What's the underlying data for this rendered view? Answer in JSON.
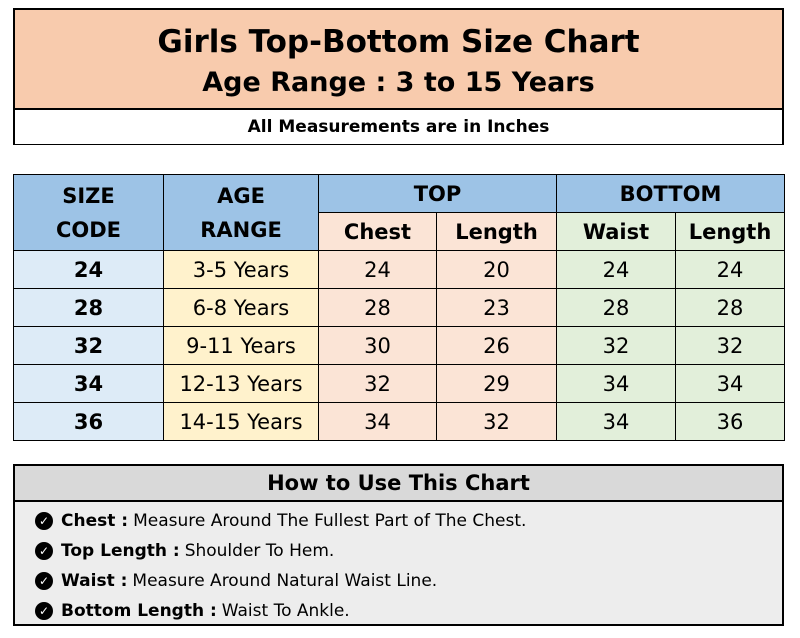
{
  "header": {
    "title": "Girls Top-Bottom Size Chart",
    "subtitle": "Age Range : 3 to 15 Years",
    "note": "All Measurements are in Inches"
  },
  "table": {
    "headers": {
      "size_code_1": "SIZE",
      "size_code_2": "CODE",
      "age_range_1": "AGE",
      "age_range_2": "RANGE",
      "top": "TOP",
      "bottom": "BOTTOM",
      "top_chest": "Chest",
      "top_length": "Length",
      "bottom_waist": "Waist",
      "bottom_length": "Length"
    },
    "rows": [
      {
        "code": "24",
        "age": "3-5 Years",
        "chest": "24",
        "top_length": "20",
        "waist": "24",
        "bottom_length": "24"
      },
      {
        "code": "28",
        "age": "6-8 Years",
        "chest": "28",
        "top_length": "23",
        "waist": "28",
        "bottom_length": "28"
      },
      {
        "code": "32",
        "age": "9-11 Years",
        "chest": "30",
        "top_length": "26",
        "waist": "32",
        "bottom_length": "32"
      },
      {
        "code": "34",
        "age": "12-13 Years",
        "chest": "32",
        "top_length": "29",
        "waist": "34",
        "bottom_length": "34"
      },
      {
        "code": "36",
        "age": "14-15 Years",
        "chest": "34",
        "top_length": "32",
        "waist": "34",
        "bottom_length": "36"
      }
    ]
  },
  "how_to_use": {
    "title": "How to Use This Chart",
    "items": [
      {
        "term": "Chest :",
        "text": "Measure Around The Fullest Part of The Chest."
      },
      {
        "term": "Top Length :",
        "text": "Shoulder To Hem."
      },
      {
        "term": "Waist :",
        "text": "Measure Around Natural Waist Line."
      },
      {
        "term": "Bottom Length :",
        "text": "Waist To Ankle."
      }
    ]
  },
  "icons": {
    "bullet": "check-circle-icon"
  },
  "colors": {
    "header_bg": "#f8cbad",
    "blue_header": "#9dc3e6",
    "green_header": "#c5e0b4",
    "age_column": "#fff2cc"
  }
}
